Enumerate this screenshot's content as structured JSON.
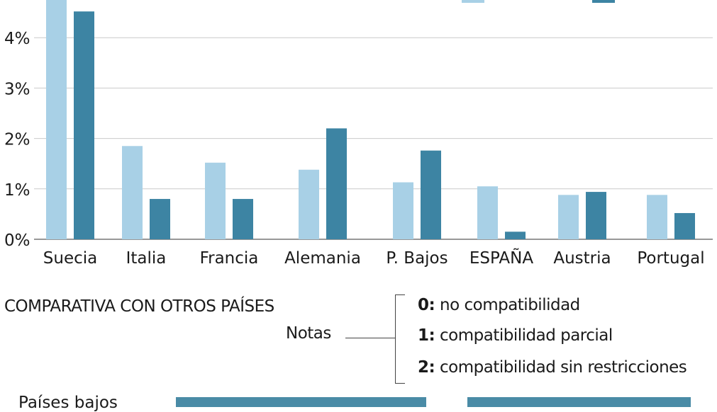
{
  "colors": {
    "light": "#a8d0e6",
    "dark": "#3d84a3",
    "grid": "#c9c9c9",
    "axis": "#777777"
  },
  "chart_data": {
    "type": "bar",
    "categories": [
      "Suecia",
      "Italia",
      "Francia",
      "Alemania",
      "P. Bajos",
      "ESPAÑA",
      "Austria",
      "Portugal"
    ],
    "series": [
      {
        "values": [
          4.8,
          1.85,
          1.52,
          1.38,
          1.13,
          1.05,
          0.88,
          0.88
        ],
        "color": "#a8d0e6"
      },
      {
        "values": [
          4.52,
          0.8,
          0.8,
          2.2,
          1.76,
          0.15,
          0.94,
          0.52
        ],
        "color": "#3d84a3"
      }
    ],
    "y_ticks": [
      "0%",
      "1%",
      "2%",
      "3%",
      "4%"
    ],
    "ylim": [
      0,
      4.75
    ],
    "grid": true,
    "legend": "top-right"
  },
  "section_title": "COMPARATIVA CON OTROS PAÍSES",
  "notes": {
    "label": "Notas",
    "items": [
      {
        "code": "0:",
        "text": " no compatibilidad"
      },
      {
        "code": "1:",
        "text": " compatibilidad parcial"
      },
      {
        "code": "2:",
        "text": " compatibilidad sin restricciones"
      }
    ]
  },
  "table_row_label": "Países bajos"
}
